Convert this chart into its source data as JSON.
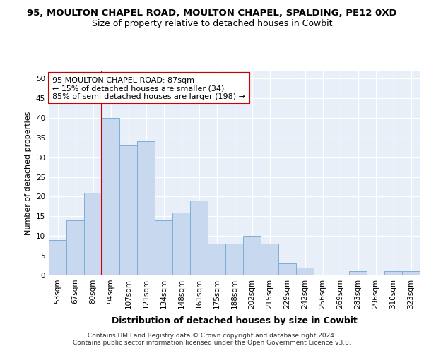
{
  "title1": "95, MOULTON CHAPEL ROAD, MOULTON CHAPEL, SPALDING, PE12 0XD",
  "title2": "Size of property relative to detached houses in Cowbit",
  "xlabel": "Distribution of detached houses by size in Cowbit",
  "ylabel": "Number of detached properties",
  "bar_color": "#c8d8ee",
  "bar_edge_color": "#7bafd4",
  "categories": [
    "53sqm",
    "67sqm",
    "80sqm",
    "94sqm",
    "107sqm",
    "121sqm",
    "134sqm",
    "148sqm",
    "161sqm",
    "175sqm",
    "188sqm",
    "202sqm",
    "215sqm",
    "229sqm",
    "242sqm",
    "256sqm",
    "269sqm",
    "283sqm",
    "296sqm",
    "310sqm",
    "323sqm"
  ],
  "values": [
    9,
    14,
    21,
    40,
    33,
    34,
    14,
    16,
    19,
    8,
    8,
    10,
    8,
    3,
    2,
    0,
    0,
    1,
    0,
    1,
    1
  ],
  "vline_x_index": 3,
  "vline_color": "#cc0000",
  "annotation_text": "95 MOULTON CHAPEL ROAD: 87sqm\n← 15% of detached houses are smaller (34)\n85% of semi-detached houses are larger (198) →",
  "annotation_box_color": "#ffffff",
  "annotation_box_edge": "#cc0000",
  "ylim": [
    0,
    52
  ],
  "yticks": [
    0,
    5,
    10,
    15,
    20,
    25,
    30,
    35,
    40,
    45,
    50
  ],
  "background_color": "#e8eff8",
  "grid_color": "#ffffff",
  "fig_bg_color": "#ffffff",
  "footer": "Contains HM Land Registry data © Crown copyright and database right 2024.\nContains public sector information licensed under the Open Government Licence v3.0.",
  "title1_fontsize": 9.5,
  "title2_fontsize": 9,
  "tick_fontsize": 7.5,
  "xlabel_fontsize": 9,
  "ylabel_fontsize": 8,
  "ann_fontsize": 8,
  "footer_fontsize": 6.5
}
